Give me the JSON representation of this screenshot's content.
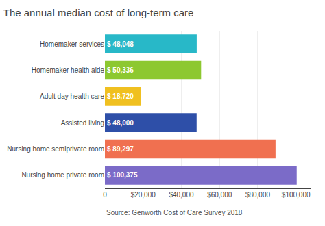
{
  "chart_data": {
    "type": "bar",
    "orientation": "horizontal",
    "title": "The annual median cost of long-term care",
    "annotations": [
      "Source: Genworth Cost of Care Survey 2018"
    ],
    "categories": [
      "Nursing home private room",
      "Nursing home semiprivate room",
      "Assisted living",
      "Adult day health care",
      "Homemaker health aide",
      "Homemaker services"
    ],
    "values": [
      100375,
      89297,
      48000,
      18720,
      50336,
      48048
    ],
    "value_labels": [
      "$ 100,375",
      "$ 89,297",
      "$ 48,000",
      "$ 18,720",
      "$ 50,336",
      "$ 48,048"
    ],
    "data_labels": true,
    "colors": [
      "#7b6bc8",
      "#f07050",
      "#2e4fa8",
      "#f0c020",
      "#8dc830",
      "#28b8c8"
    ],
    "xlim": [
      0,
      108000
    ],
    "xticks": [
      0,
      {
        "value": 20000,
        "label": "$20,000"
      },
      {
        "value": 40000,
        "label": "$40,000"
      },
      {
        "value": 60000,
        "label": "$60,000"
      },
      {
        "value": 80000,
        "label": "$80,000"
      },
      {
        "value": 100000,
        "label": "$100,000"
      }
    ],
    "grid": true
  }
}
